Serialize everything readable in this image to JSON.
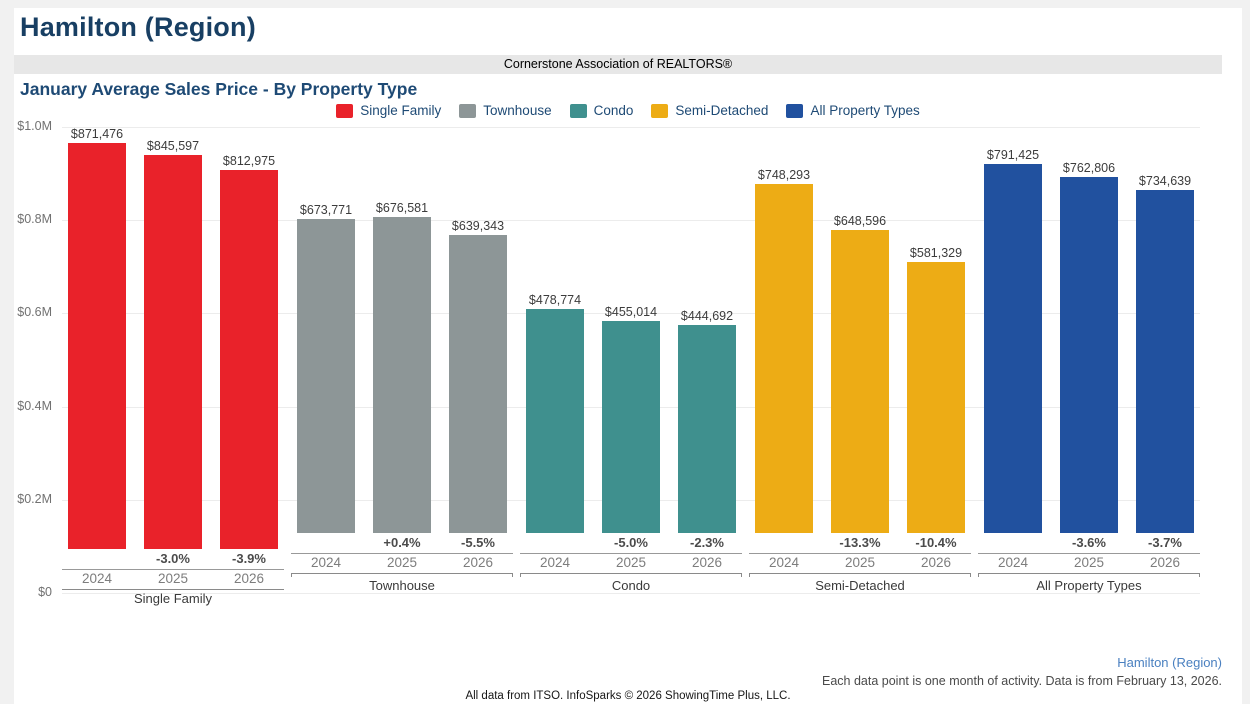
{
  "header": {
    "title": "Hamilton (Region)",
    "association_banner": "Cornerstone Association of REALTORS®"
  },
  "chart_data": {
    "type": "bar",
    "title": "January Average Sales Price - By Property Type",
    "categories": [
      "2024",
      "2025",
      "2026"
    ],
    "y_ticks": [
      "$1.0M",
      "$0.8M",
      "$0.6M",
      "$0.4M",
      "$0.2M",
      "$0"
    ],
    "ylim": [
      0,
      1000000
    ],
    "grid": true,
    "legend_position": "top-center",
    "value_format": "currency",
    "series": [
      {
        "name": "Single Family",
        "color": "#e9222a",
        "values": [
          871476,
          845597,
          812975
        ],
        "pct_change": [
          "",
          "-3.0%",
          "-3.9%"
        ]
      },
      {
        "name": "Townhouse",
        "color": "#8d9697",
        "values": [
          673771,
          676581,
          639343
        ],
        "pct_change": [
          "",
          "+0.4%",
          "-5.5%"
        ]
      },
      {
        "name": "Condo",
        "color": "#3f908e",
        "values": [
          478774,
          455014,
          444692
        ],
        "pct_change": [
          "",
          "-5.0%",
          "-2.3%"
        ]
      },
      {
        "name": "Semi-Detached",
        "color": "#edac15",
        "values": [
          748293,
          648596,
          581329
        ],
        "pct_change": [
          "",
          "-13.3%",
          "-10.4%"
        ]
      },
      {
        "name": "All Property Types",
        "color": "#21519f",
        "values": [
          791425,
          762806,
          734639
        ],
        "pct_change": [
          "",
          "-3.6%",
          "-3.7%"
        ]
      }
    ]
  },
  "footer": {
    "region_link": "Hamilton (Region)",
    "note": "Each data point is one month of activity. Data is from February 13, 2026.",
    "attribution": "All data from ITSO. InfoSparks © 2026 ShowingTime Plus, LLC."
  }
}
